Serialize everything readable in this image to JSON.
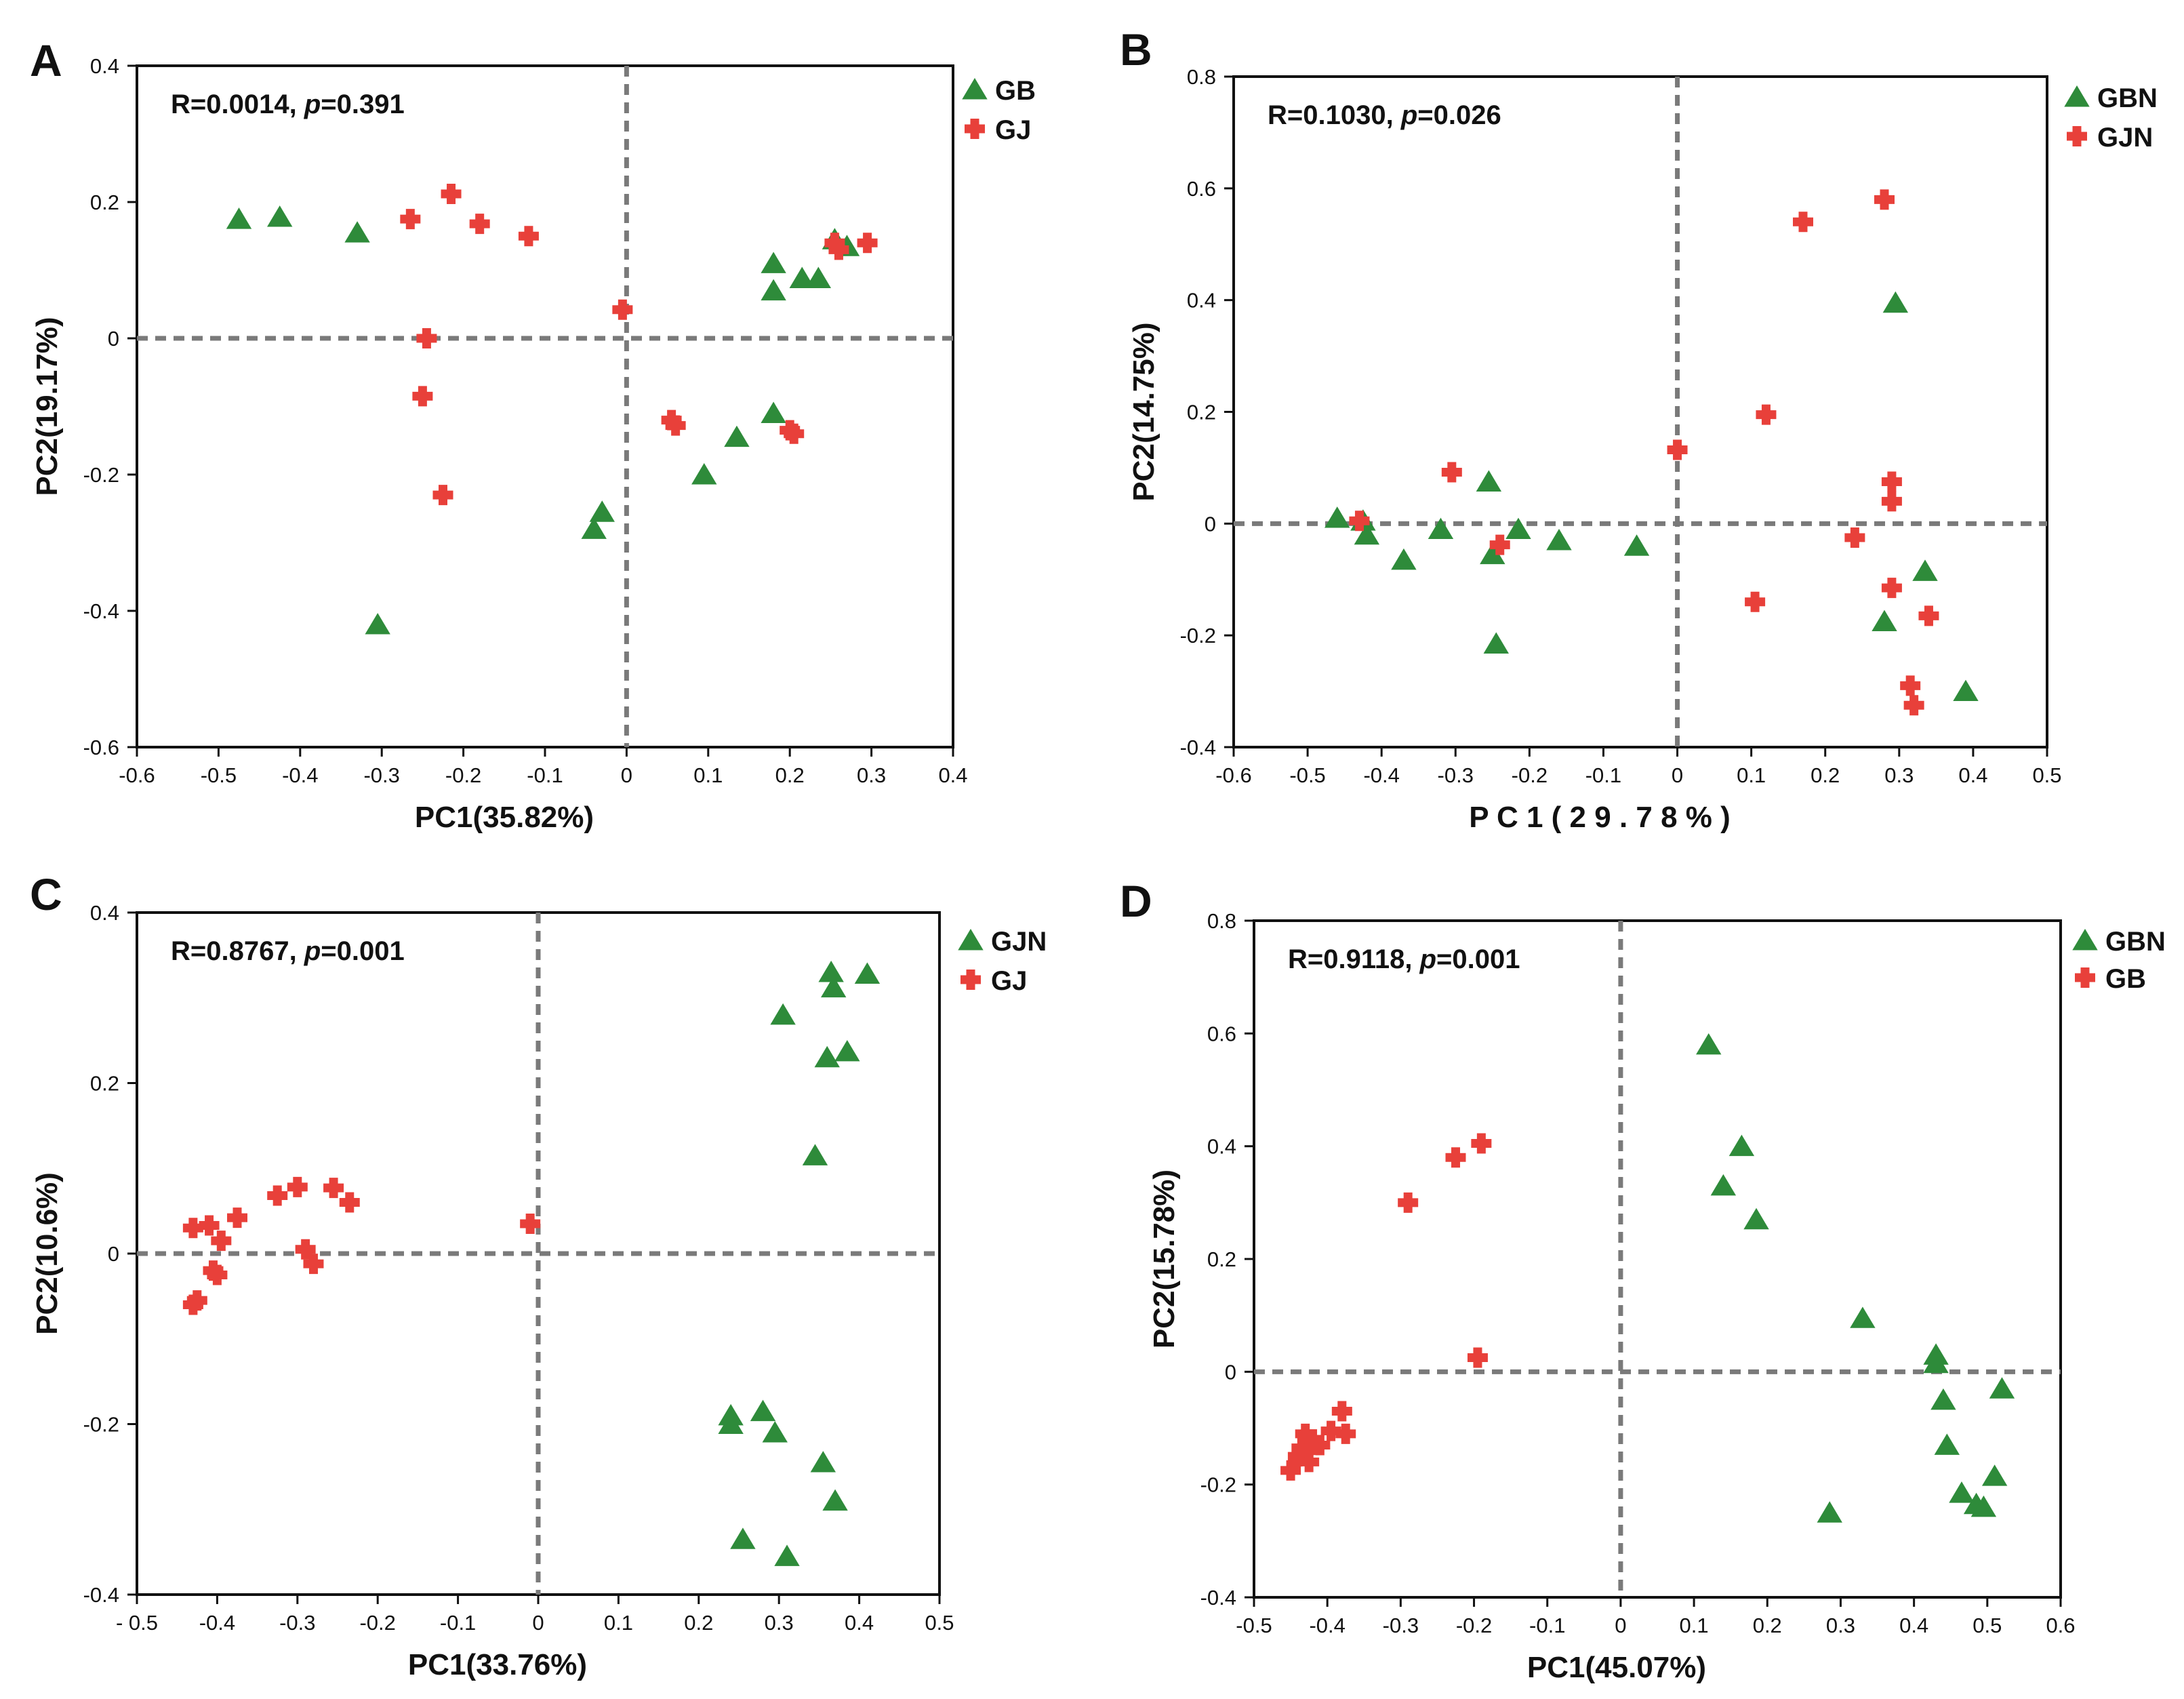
{
  "chart_data": [
    {
      "type": "scatter",
      "panel_label": "A",
      "stat_text": {
        "r": "R=0.0014, ",
        "p": "p",
        "rest": "=0.391"
      },
      "xlabel": "PC1(35.82%)",
      "ylabel": "PC2(19.17%)",
      "xlim": [
        -0.6,
        0.4
      ],
      "ylim": [
        -0.6,
        0.4
      ],
      "x_ticks": [
        -0.6,
        -0.5,
        -0.4,
        -0.3,
        -0.2,
        -0.1,
        0,
        0.1,
        0.2,
        0.3,
        0.4
      ],
      "x_tick_labels": [
        "-0.6",
        "-0.5",
        "-0.4",
        "-0.3",
        "-0.2",
        "-0.1",
        "0",
        "0.1",
        "0.2",
        "0.3",
        "0.4"
      ],
      "y_ticks": [
        0.4,
        0.2,
        0,
        -0.2,
        -0.4,
        -0.6
      ],
      "y_tick_labels": [
        "0.4",
        "0.2",
        "0",
        "-0.2",
        "-0.4",
        "-0.6"
      ],
      "legend_position": "top-right",
      "series": [
        {
          "name": "GB",
          "marker": "triangle",
          "color": "#2e8b3a",
          "points": [
            [
              -0.475,
              0.175
            ],
            [
              -0.425,
              0.178
            ],
            [
              -0.33,
              0.155
            ],
            [
              -0.305,
              -0.42
            ],
            [
              -0.04,
              -0.28
            ],
            [
              -0.03,
              -0.255
            ],
            [
              0.095,
              -0.2
            ],
            [
              0.135,
              -0.145
            ],
            [
              0.18,
              0.11
            ],
            [
              0.18,
              0.07
            ],
            [
              0.18,
              -0.11
            ],
            [
              0.215,
              0.088
            ],
            [
              0.235,
              0.088
            ],
            [
              0.255,
              0.145
            ],
            [
              0.27,
              0.135
            ]
          ]
        },
        {
          "name": "GJ",
          "marker": "plus",
          "color": "#e8403a",
          "points": [
            [
              -0.265,
              0.175
            ],
            [
              -0.215,
              0.212
            ],
            [
              -0.18,
              0.168
            ],
            [
              -0.12,
              0.15
            ],
            [
              -0.245,
              0.0
            ],
            [
              -0.25,
              -0.085
            ],
            [
              -0.225,
              -0.23
            ],
            [
              -0.005,
              0.042
            ],
            [
              0.055,
              -0.12
            ],
            [
              0.06,
              -0.128
            ],
            [
              0.2,
              -0.135
            ],
            [
              0.205,
              -0.14
            ],
            [
              0.255,
              0.14
            ],
            [
              0.26,
              0.13
            ],
            [
              0.295,
              0.14
            ]
          ]
        }
      ]
    },
    {
      "type": "scatter",
      "panel_label": "B",
      "stat_text": {
        "r": "R=0.1030, ",
        "p": "p",
        "rest": "=0.026"
      },
      "xlabel": "P C 1 ( 2 9 . 7 8 % )",
      "ylabel": "PC2(14.75%)",
      "xlim": [
        -0.6,
        0.5
      ],
      "ylim": [
        -0.4,
        0.8
      ],
      "x_ticks": [
        -0.6,
        -0.5,
        -0.4,
        -0.3,
        -0.2,
        -0.1,
        0,
        0.1,
        0.2,
        0.3,
        0.4,
        0.5
      ],
      "x_tick_labels": [
        "-0.6",
        "-0.5",
        "-0.4",
        "-0.3",
        "-0.2",
        "-0.1",
        "0",
        "0.1",
        "0.2",
        "0.3",
        "0.4",
        "0.5"
      ],
      "y_ticks": [
        0.8,
        0.6,
        0.4,
        0.2,
        0,
        -0.2,
        -0.4
      ],
      "y_tick_labels": [
        "0.8",
        "0.6",
        "0.4",
        "0.2",
        "0",
        "-0.2",
        "-0.4"
      ],
      "legend_position": "top-right",
      "series": [
        {
          "name": "GBN",
          "marker": "triangle",
          "color": "#2e8b3a",
          "points": [
            [
              -0.46,
              0.01
            ],
            [
              -0.425,
              0.005
            ],
            [
              -0.42,
              -0.02
            ],
            [
              -0.37,
              -0.065
            ],
            [
              -0.32,
              -0.01
            ],
            [
              -0.255,
              0.075
            ],
            [
              -0.25,
              -0.055
            ],
            [
              -0.245,
              -0.215
            ],
            [
              -0.215,
              -0.01
            ],
            [
              -0.16,
              -0.03
            ],
            [
              -0.055,
              -0.04
            ],
            [
              0.28,
              -0.175
            ],
            [
              0.295,
              0.395
            ],
            [
              0.335,
              -0.085
            ],
            [
              0.39,
              -0.3
            ]
          ]
        },
        {
          "name": "GJN",
          "marker": "plus",
          "color": "#e8403a",
          "points": [
            [
              -0.43,
              0.005
            ],
            [
              -0.305,
              0.092
            ],
            [
              -0.24,
              -0.038
            ],
            [
              0.0,
              0.132
            ],
            [
              0.105,
              -0.14
            ],
            [
              0.12,
              0.195
            ],
            [
              0.17,
              0.54
            ],
            [
              0.24,
              -0.025
            ],
            [
              0.28,
              0.58
            ],
            [
              0.29,
              0.075
            ],
            [
              0.29,
              0.04
            ],
            [
              0.29,
              -0.115
            ],
            [
              0.315,
              -0.29
            ],
            [
              0.32,
              -0.325
            ],
            [
              0.34,
              -0.165
            ]
          ]
        }
      ]
    },
    {
      "type": "scatter",
      "panel_label": "C",
      "stat_text": {
        "r": "R=0.8767, ",
        "p": "p",
        "rest": "=0.001"
      },
      "xlabel": "PC1(33.76%)",
      "ylabel": "PC2(10.6%)",
      "xlim": [
        -0.5,
        0.5
      ],
      "ylim": [
        -0.4,
        0.4
      ],
      "x_ticks": [
        -0.5,
        -0.4,
        -0.3,
        -0.2,
        -0.1,
        0,
        0.1,
        0.2,
        0.3,
        0.4,
        0.5
      ],
      "x_tick_labels": [
        "- 0.5",
        "-0.4",
        "-0.3",
        "-0.2",
        "-0.1",
        "0",
        "0.1",
        "0.2",
        "0.3",
        "0.4",
        "0.5"
      ],
      "y_ticks": [
        0.4,
        0.2,
        0,
        -0.2,
        -0.4
      ],
      "y_tick_labels": [
        "0.4",
        "0.2",
        "0",
        "-0.2",
        "-0.4"
      ],
      "legend_position": "top-right",
      "series": [
        {
          "name": "GJN",
          "marker": "triangle",
          "color": "#2e8b3a",
          "points": [
            [
              0.24,
              -0.19
            ],
            [
              0.24,
              -0.2
            ],
            [
              0.255,
              -0.335
            ],
            [
              0.28,
              -0.185
            ],
            [
              0.295,
              -0.21
            ],
            [
              0.305,
              0.28
            ],
            [
              0.31,
              -0.355
            ],
            [
              0.345,
              0.115
            ],
            [
              0.355,
              -0.245
            ],
            [
              0.36,
              0.23
            ],
            [
              0.365,
              0.33
            ],
            [
              0.368,
              0.312
            ],
            [
              0.37,
              -0.29
            ],
            [
              0.385,
              0.237
            ],
            [
              0.41,
              0.328
            ]
          ]
        },
        {
          "name": "GJ",
          "marker": "plus",
          "color": "#e8403a",
          "points": [
            [
              -0.43,
              0.03
            ],
            [
              -0.43,
              -0.06
            ],
            [
              -0.425,
              -0.055
            ],
            [
              -0.41,
              0.033
            ],
            [
              -0.405,
              -0.02
            ],
            [
              -0.4,
              -0.025
            ],
            [
              -0.395,
              0.015
            ],
            [
              -0.375,
              0.042
            ],
            [
              -0.325,
              0.068
            ],
            [
              -0.3,
              0.078
            ],
            [
              -0.29,
              0.005
            ],
            [
              -0.28,
              -0.012
            ],
            [
              -0.255,
              0.077
            ],
            [
              -0.235,
              0.06
            ],
            [
              -0.01,
              0.035
            ]
          ]
        }
      ]
    },
    {
      "type": "scatter",
      "panel_label": "D",
      "stat_text": {
        "r": "R=0.9118, ",
        "p": "p",
        "rest": "=0.001"
      },
      "xlabel": "PC1(45.07%)",
      "ylabel": "PC2(15.78%)",
      "xlim": [
        -0.5,
        0.6
      ],
      "ylim": [
        -0.4,
        0.8
      ],
      "x_ticks": [
        -0.5,
        -0.4,
        -0.3,
        -0.2,
        -0.1,
        0,
        0.1,
        0.2,
        0.3,
        0.4,
        0.5,
        0.6
      ],
      "x_tick_labels": [
        "-0.5",
        "-0.4",
        "-0.3",
        "-0.2",
        "-0.1",
        "0",
        "0.1",
        "0.2",
        "0.3",
        "0.4",
        "0.5",
        "0.6"
      ],
      "y_ticks": [
        0.8,
        0.6,
        0.4,
        0.2,
        0,
        -0.2,
        -0.4
      ],
      "y_tick_labels": [
        "0.8",
        "0.6",
        "0.4",
        "0.2",
        "0",
        "-0.2",
        "-0.4"
      ],
      "legend_position": "top-right",
      "series": [
        {
          "name": "GBN",
          "marker": "triangle",
          "color": "#2e8b3a",
          "points": [
            [
              0.12,
              0.58
            ],
            [
              0.14,
              0.33
            ],
            [
              0.165,
              0.4
            ],
            [
              0.185,
              0.27
            ],
            [
              0.285,
              -0.25
            ],
            [
              0.33,
              0.095
            ],
            [
              0.43,
              0.03
            ],
            [
              0.43,
              0.015
            ],
            [
              0.44,
              -0.05
            ],
            [
              0.445,
              -0.13
            ],
            [
              0.465,
              -0.215
            ],
            [
              0.485,
              -0.235
            ],
            [
              0.495,
              -0.24
            ],
            [
              0.51,
              -0.185
            ],
            [
              0.52,
              -0.03
            ]
          ]
        },
        {
          "name": "GB",
          "marker": "plus",
          "color": "#e8403a",
          "points": [
            [
              -0.45,
              -0.175
            ],
            [
              -0.44,
              -0.15
            ],
            [
              -0.435,
              -0.135
            ],
            [
              -0.43,
              -0.11
            ],
            [
              -0.425,
              -0.16
            ],
            [
              -0.42,
              -0.12
            ],
            [
              -0.41,
              -0.13
            ],
            [
              -0.395,
              -0.105
            ],
            [
              -0.38,
              -0.07
            ],
            [
              -0.375,
              -0.11
            ],
            [
              -0.29,
              0.3
            ],
            [
              -0.225,
              0.38
            ],
            [
              -0.19,
              0.405
            ],
            [
              -0.195,
              0.025
            ],
            [
              -0.425,
              -0.14
            ]
          ]
        }
      ]
    }
  ]
}
